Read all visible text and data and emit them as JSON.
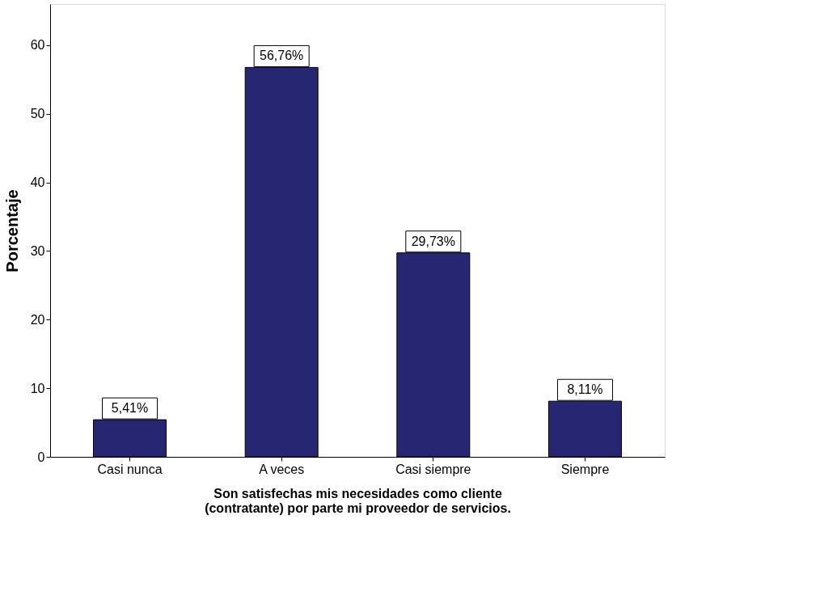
{
  "chart_data": {
    "type": "bar",
    "categories": [
      "Casi nunca",
      "A veces",
      "Casi siempre",
      "Siempre"
    ],
    "values": [
      5.41,
      56.76,
      29.73,
      8.11
    ],
    "value_labels": [
      "5,41%",
      "56,76%",
      "29,73%",
      "8,11%"
    ],
    "color": "#262673",
    "xlabel": "Son satisfechas mis necesidades como cliente\n(contratante) por parte mi proveedor de servicios.",
    "ylabel": "Porcentaje",
    "ylim": [
      0,
      66
    ],
    "yticks": [
      0,
      10,
      20,
      30,
      40,
      50,
      60
    ],
    "grid": false
  }
}
